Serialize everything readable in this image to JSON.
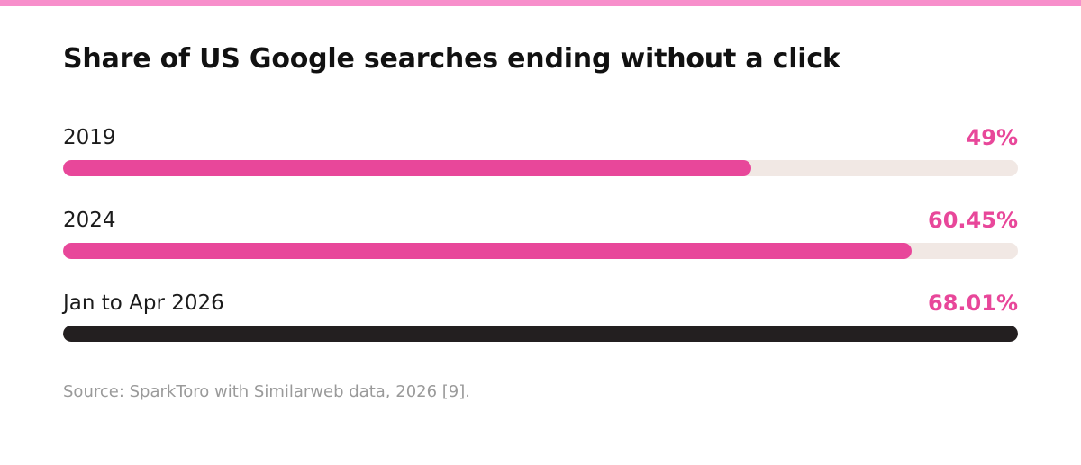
{
  "colors": {
    "accent_top": "#f78fcb",
    "pink": "#e8479a",
    "dark": "#231f20",
    "track": "#f1e8e4",
    "source_text": "#9a9a9a"
  },
  "chart_data": {
    "type": "bar",
    "orientation": "horizontal",
    "title": "Share of US Google searches ending without a click",
    "categories": [
      "2019",
      "2024",
      "Jan to Apr 2026"
    ],
    "values": [
      49,
      60.45,
      68.01
    ],
    "value_labels": [
      "49%",
      "60.45%",
      "68.01%"
    ],
    "bar_colors": [
      "#e8479a",
      "#e8479a",
      "#231f20"
    ],
    "value_label_colors": [
      "#e8479a",
      "#e8479a",
      "#e8479a"
    ],
    "xlim": [
      0,
      68.01
    ],
    "grid": false,
    "source": "Source: SparkToro with Similarweb data, 2026 [9]."
  }
}
